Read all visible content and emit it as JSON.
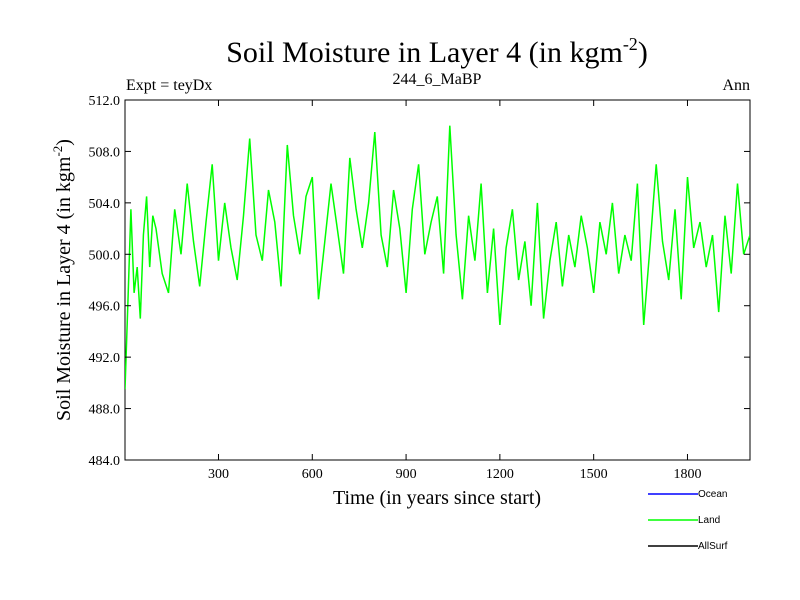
{
  "chart_data": {
    "type": "line",
    "title": "Soil Moisture in Layer 4 (in kgm",
    "title_sup": "-2",
    "title_tail": ")",
    "left_header": "Expt = teyDx",
    "center_header": "244_6_MaBP",
    "right_header": "Ann",
    "xlabel": "Time (in years since start)",
    "ylabel": "Soil Moisture in Layer 4 (in kgm",
    "ylabel_sup": "-2",
    "ylabel_tail": ")",
    "xlim": [
      1,
      2000
    ],
    "ylim": [
      484.0,
      512.0
    ],
    "x_ticks": [
      300,
      600,
      900,
      1200,
      1500,
      1800
    ],
    "x_tick_labels": [
      "300",
      "600",
      "900",
      "1200",
      "1500",
      "1800"
    ],
    "y_ticks": [
      484.0,
      488.0,
      492.0,
      496.0,
      500.0,
      504.0,
      508.0,
      512.0
    ],
    "y_tick_labels": [
      "484.0",
      "488.0",
      "492.0",
      "496.0",
      "500.0",
      "504.0",
      "508.0",
      "512.0"
    ],
    "series": [
      {
        "name": "Ocean",
        "color": "#0000ff",
        "x": [],
        "y": []
      },
      {
        "name": "Land",
        "color": "#00ff00",
        "x": [
          1,
          10,
          20,
          30,
          40,
          50,
          60,
          70,
          80,
          90,
          100,
          120,
          140,
          160,
          180,
          200,
          220,
          240,
          260,
          280,
          300,
          320,
          340,
          360,
          380,
          400,
          420,
          440,
          460,
          480,
          500,
          520,
          540,
          560,
          580,
          600,
          620,
          640,
          660,
          680,
          700,
          720,
          740,
          760,
          780,
          800,
          820,
          840,
          860,
          880,
          900,
          920,
          940,
          960,
          980,
          1000,
          1020,
          1040,
          1060,
          1080,
          1100,
          1120,
          1140,
          1160,
          1180,
          1200,
          1220,
          1240,
          1260,
          1280,
          1300,
          1320,
          1340,
          1360,
          1380,
          1400,
          1420,
          1440,
          1460,
          1480,
          1500,
          1520,
          1540,
          1560,
          1580,
          1600,
          1620,
          1640,
          1660,
          1680,
          1700,
          1720,
          1740,
          1760,
          1780,
          1800,
          1820,
          1840,
          1860,
          1880,
          1900,
          1920,
          1940,
          1960,
          1980,
          2000
        ],
        "y": [
          489.5,
          496.0,
          503.5,
          497.0,
          499.0,
          495.0,
          501.5,
          504.5,
          499.0,
          503.0,
          502.0,
          498.5,
          497.0,
          503.5,
          500.0,
          505.5,
          501.0,
          497.5,
          502.5,
          507.0,
          499.5,
          504.0,
          500.5,
          498.0,
          503.0,
          509.0,
          501.5,
          499.5,
          505.0,
          502.5,
          497.5,
          508.5,
          503.0,
          500.0,
          504.5,
          506.0,
          496.5,
          501.0,
          505.5,
          502.0,
          498.5,
          507.5,
          503.5,
          500.5,
          504.0,
          509.5,
          501.5,
          499.0,
          505.0,
          502.0,
          497.0,
          503.5,
          507.0,
          500.0,
          502.5,
          504.5,
          498.5,
          510.0,
          501.5,
          496.5,
          503.0,
          499.5,
          505.5,
          497.0,
          502.0,
          494.5,
          500.5,
          503.5,
          498.0,
          501.0,
          496.0,
          504.0,
          495.0,
          499.5,
          502.5,
          497.5,
          501.5,
          499.0,
          503.0,
          500.5,
          497.0,
          502.5,
          500.0,
          504.0,
          498.5,
          501.5,
          499.5,
          505.5,
          494.5,
          500.5,
          507.0,
          501.0,
          498.0,
          503.5,
          496.5,
          506.0,
          500.5,
          502.5,
          499.0,
          501.5,
          495.5,
          503.0,
          498.5,
          505.5,
          500.0,
          501.5
        ]
      },
      {
        "name": "AllSurf",
        "color": "#000000",
        "x": [],
        "y": []
      }
    ],
    "legend_position": "bottom-right",
    "grid": false
  }
}
